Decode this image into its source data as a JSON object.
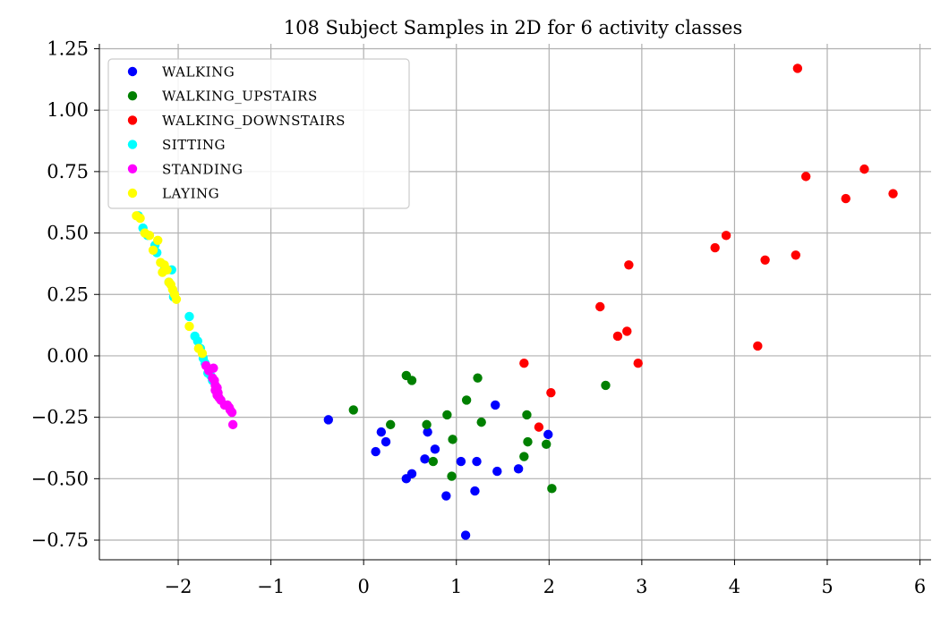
{
  "chart_data": {
    "type": "scatter",
    "title": "108 Subject Samples in 2D for 6 activity classes",
    "xlabel": "",
    "ylabel": "",
    "xlim": [
      -2.85,
      6.12
    ],
    "ylim": [
      -0.83,
      1.27
    ],
    "x_ticks": [
      -2,
      -1,
      0,
      1,
      2,
      3,
      4,
      5,
      6
    ],
    "x_tick_labels": [
      "−2",
      "−1",
      "0",
      "1",
      "2",
      "3",
      "4",
      "5",
      "6"
    ],
    "y_ticks": [
      -0.75,
      -0.5,
      -0.25,
      0.0,
      0.25,
      0.5,
      0.75,
      1.0,
      1.25
    ],
    "y_tick_labels": [
      "−0.75",
      "−0.50",
      "−0.25",
      "0.00",
      "0.25",
      "0.50",
      "0.75",
      "1.00",
      "1.25"
    ],
    "grid": true,
    "legend_position": "top-left",
    "series": [
      {
        "name": "WALKING",
        "color": "#0000ff",
        "points": [
          [
            -0.38,
            -0.26
          ],
          [
            0.13,
            -0.39
          ],
          [
            0.19,
            -0.31
          ],
          [
            0.24,
            -0.35
          ],
          [
            0.46,
            -0.5
          ],
          [
            0.52,
            -0.48
          ],
          [
            0.66,
            -0.42
          ],
          [
            0.69,
            -0.31
          ],
          [
            0.77,
            -0.38
          ],
          [
            0.89,
            -0.57
          ],
          [
            1.05,
            -0.43
          ],
          [
            1.1,
            -0.73
          ],
          [
            1.2,
            -0.55
          ],
          [
            1.22,
            -0.43
          ],
          [
            1.42,
            -0.2
          ],
          [
            1.44,
            -0.47
          ],
          [
            1.67,
            -0.46
          ],
          [
            1.99,
            -0.32
          ]
        ]
      },
      {
        "name": "WALKING_UPSTAIRS",
        "color": "#008000",
        "points": [
          [
            -0.11,
            -0.22
          ],
          [
            0.29,
            -0.28
          ],
          [
            0.46,
            -0.08
          ],
          [
            0.52,
            -0.1
          ],
          [
            0.68,
            -0.28
          ],
          [
            0.75,
            -0.43
          ],
          [
            0.9,
            -0.24
          ],
          [
            0.95,
            -0.49
          ],
          [
            0.96,
            -0.34
          ],
          [
            1.11,
            -0.18
          ],
          [
            1.23,
            -0.09
          ],
          [
            1.27,
            -0.27
          ],
          [
            1.73,
            -0.41
          ],
          [
            1.76,
            -0.24
          ],
          [
            1.77,
            -0.35
          ],
          [
            1.97,
            -0.36
          ],
          [
            2.03,
            -0.54
          ],
          [
            2.61,
            -0.12
          ]
        ]
      },
      {
        "name": "WALKING_DOWNSTAIRS",
        "color": "#ff0000",
        "points": [
          [
            1.73,
            -0.03
          ],
          [
            1.89,
            -0.29
          ],
          [
            2.02,
            -0.15
          ],
          [
            2.55,
            0.2
          ],
          [
            2.74,
            0.08
          ],
          [
            2.84,
            0.1
          ],
          [
            2.86,
            0.37
          ],
          [
            2.96,
            -0.03
          ],
          [
            3.79,
            0.44
          ],
          [
            3.91,
            0.49
          ],
          [
            4.25,
            0.04
          ],
          [
            4.33,
            0.39
          ],
          [
            4.66,
            0.41
          ],
          [
            4.68,
            1.17
          ],
          [
            4.77,
            0.73
          ],
          [
            5.2,
            0.64
          ],
          [
            5.4,
            0.76
          ],
          [
            5.71,
            0.66
          ]
        ]
      },
      {
        "name": "SITTING",
        "color": "#00ffff",
        "points": [
          [
            -2.43,
            0.57
          ],
          [
            -2.38,
            0.52
          ],
          [
            -2.33,
            0.49
          ],
          [
            -2.25,
            0.45
          ],
          [
            -2.23,
            0.42
          ],
          [
            -2.15,
            0.35
          ],
          [
            -2.07,
            0.35
          ],
          [
            -2.1,
            0.3
          ],
          [
            -2.05,
            0.24
          ],
          [
            -1.88,
            0.16
          ],
          [
            -1.82,
            0.08
          ],
          [
            -1.79,
            0.06
          ],
          [
            -1.76,
            0.03
          ],
          [
            -1.73,
            -0.01
          ],
          [
            -1.71,
            -0.03
          ],
          [
            -1.68,
            -0.07
          ],
          [
            -1.65,
            -0.08
          ],
          [
            -1.63,
            -0.1
          ]
        ]
      },
      {
        "name": "STANDING",
        "color": "#ff00ff",
        "points": [
          [
            -1.7,
            -0.04
          ],
          [
            -1.67,
            -0.06
          ],
          [
            -1.62,
            -0.05
          ],
          [
            -1.63,
            -0.09
          ],
          [
            -1.61,
            -0.1
          ],
          [
            -1.6,
            -0.12
          ],
          [
            -1.58,
            -0.13
          ],
          [
            -1.6,
            -0.14
          ],
          [
            -1.57,
            -0.15
          ],
          [
            -1.56,
            -0.17
          ],
          [
            -1.54,
            -0.18
          ],
          [
            -1.58,
            -0.16
          ],
          [
            -1.5,
            -0.2
          ],
          [
            -1.47,
            -0.2
          ],
          [
            -1.45,
            -0.21
          ],
          [
            -1.44,
            -0.22
          ],
          [
            -1.42,
            -0.23
          ],
          [
            -1.41,
            -0.28
          ]
        ]
      },
      {
        "name": "LAYING",
        "color": "#ffff00",
        "points": [
          [
            -2.45,
            0.57
          ],
          [
            -2.41,
            0.56
          ],
          [
            -2.36,
            0.5
          ],
          [
            -2.31,
            0.49
          ],
          [
            -2.22,
            0.47
          ],
          [
            -2.27,
            0.43
          ],
          [
            -2.19,
            0.38
          ],
          [
            -2.15,
            0.37
          ],
          [
            -2.12,
            0.35
          ],
          [
            -2.17,
            0.34
          ],
          [
            -2.1,
            0.3
          ],
          [
            -2.08,
            0.29
          ],
          [
            -2.06,
            0.27
          ],
          [
            -2.04,
            0.25
          ],
          [
            -2.02,
            0.23
          ],
          [
            -1.88,
            0.12
          ],
          [
            -1.78,
            0.03
          ],
          [
            -1.74,
            0.01
          ]
        ]
      }
    ]
  }
}
